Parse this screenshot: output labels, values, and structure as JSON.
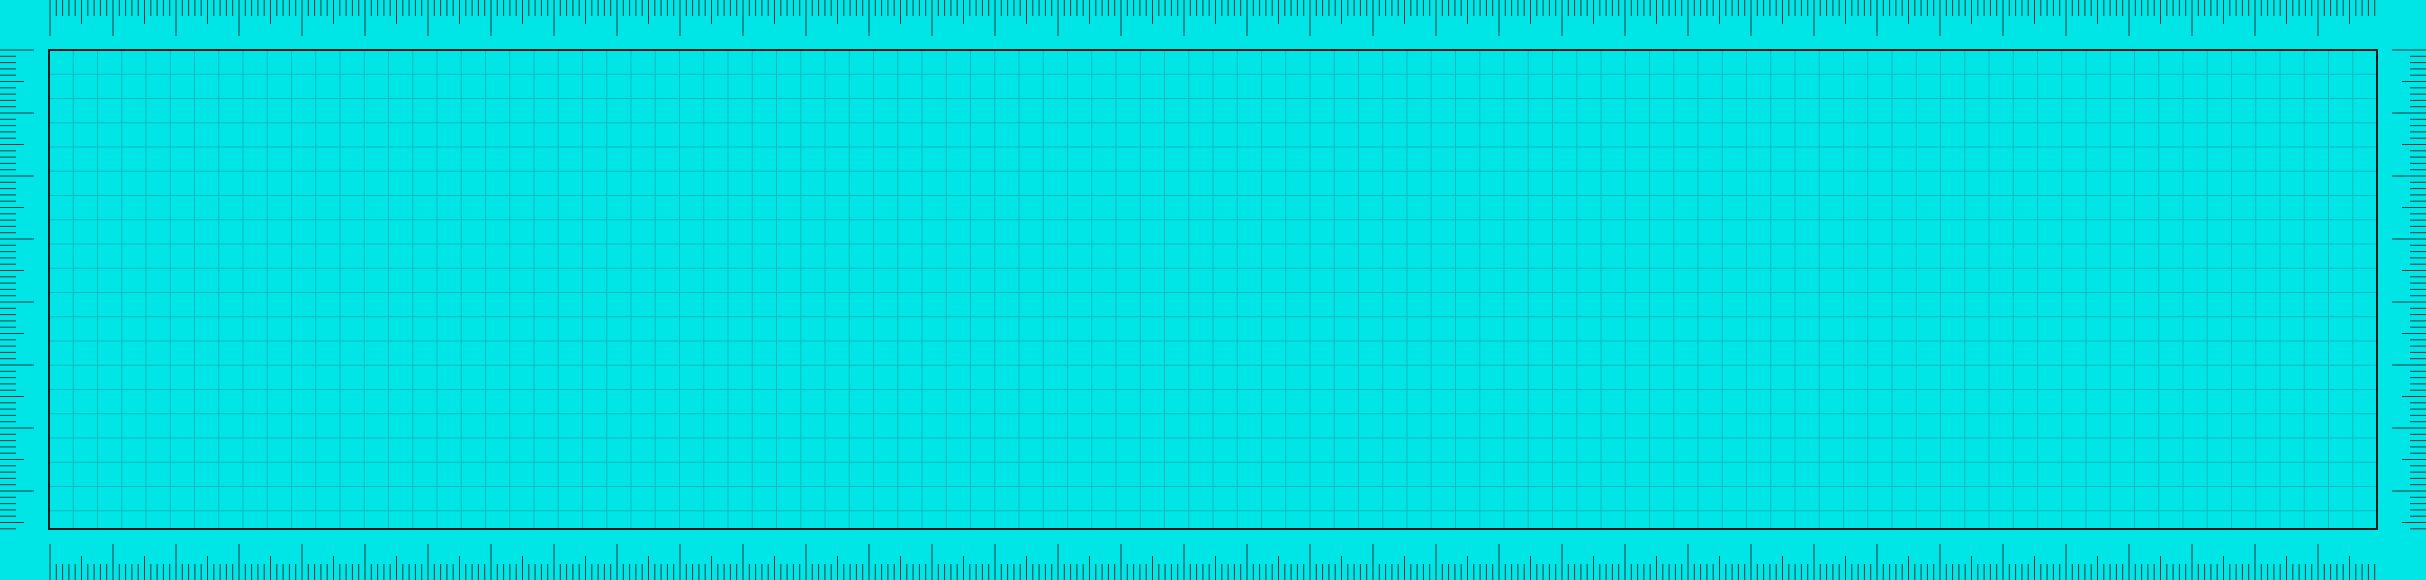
{
  "page": {
    "background_color": "#00e6e6",
    "grid_line_color": "#11b8c0",
    "tick_color": "#1a3a40",
    "frame_color": "#0a1a1a"
  }
}
